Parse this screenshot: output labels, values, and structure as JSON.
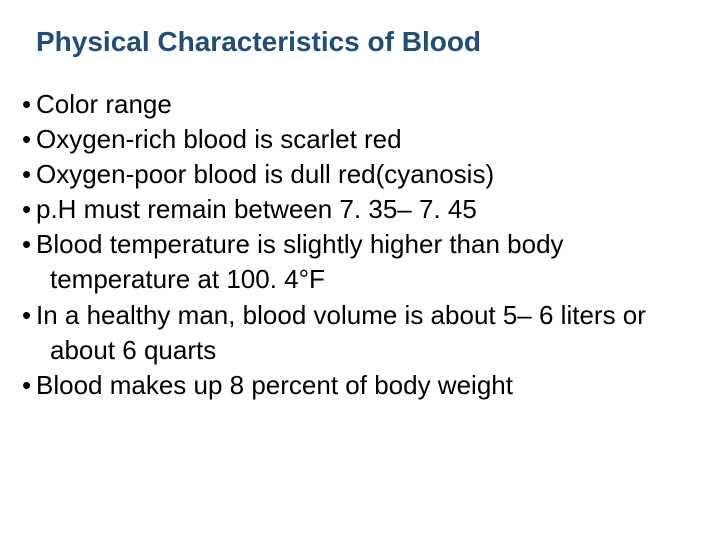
{
  "title": {
    "text": "Physical Characteristics of Blood",
    "color": "#1f4e79",
    "fontsize": 28
  },
  "body": {
    "color": "#000000",
    "fontsize": 26,
    "bullet_glyph": "•",
    "items": [
      {
        "level": 1,
        "text": "Color range"
      },
      {
        "level": 2,
        "text": "Oxygen-rich blood is scarlet red"
      },
      {
        "level": 2,
        "text": "Oxygen-poor blood is dull red(cyanosis)"
      },
      {
        "level": 1,
        "text": "p.H must remain between 7. 35– 7. 45"
      },
      {
        "level": 1,
        "text": "Blood temperature is slightly higher than body temperature at 100. 4°F"
      },
      {
        "level": 1,
        "text": "In a healthy man, blood volume is about 5– 6 liters or about 6 quarts"
      },
      {
        "level": 1,
        "text": "Blood makes up 8 percent of body weight"
      }
    ]
  }
}
